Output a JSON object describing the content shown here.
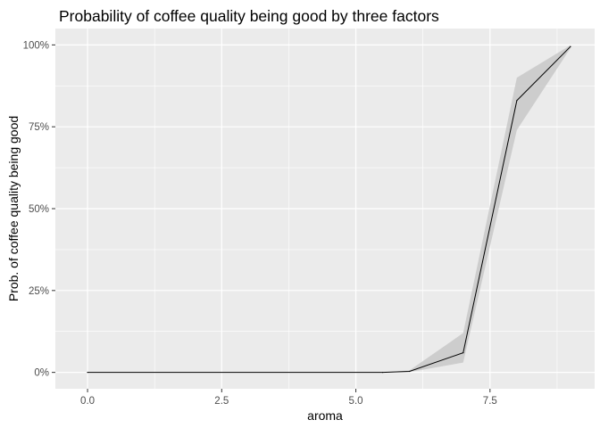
{
  "chart_data": {
    "type": "line",
    "title": "Probability of coffee quality being good by three factors",
    "xlabel": "aroma",
    "ylabel": "Prob. of coffee quality being good",
    "xlim": [
      -0.6,
      9.45
    ],
    "ylim": [
      -0.05,
      1.05
    ],
    "x_ticks": [
      0,
      2.5,
      5,
      7.5
    ],
    "x_tick_labels": [
      "0.0",
      "2.5",
      "5.0",
      "7.5"
    ],
    "y_ticks": [
      0,
      0.25,
      0.5,
      0.75,
      1.0
    ],
    "y_tick_labels": [
      "0%",
      "25%",
      "50%",
      "75%",
      "100%"
    ],
    "grid": true,
    "series": [
      {
        "x": [
          0,
          5.5,
          6,
          7,
          8,
          9
        ],
        "y": [
          0,
          0,
          0.003,
          0.06,
          0.83,
          0.995
        ],
        "lower": [
          0,
          0,
          0.001,
          0.03,
          0.74,
          0.99
        ],
        "upper": [
          0,
          0,
          0.006,
          0.12,
          0.9,
          0.999
        ]
      }
    ],
    "colors": {
      "panel": "#ebebeb",
      "grid": "#ffffff",
      "line": "#000000",
      "ribbon": "#c8c8c8",
      "tick_text": "#4d4d4d"
    }
  }
}
